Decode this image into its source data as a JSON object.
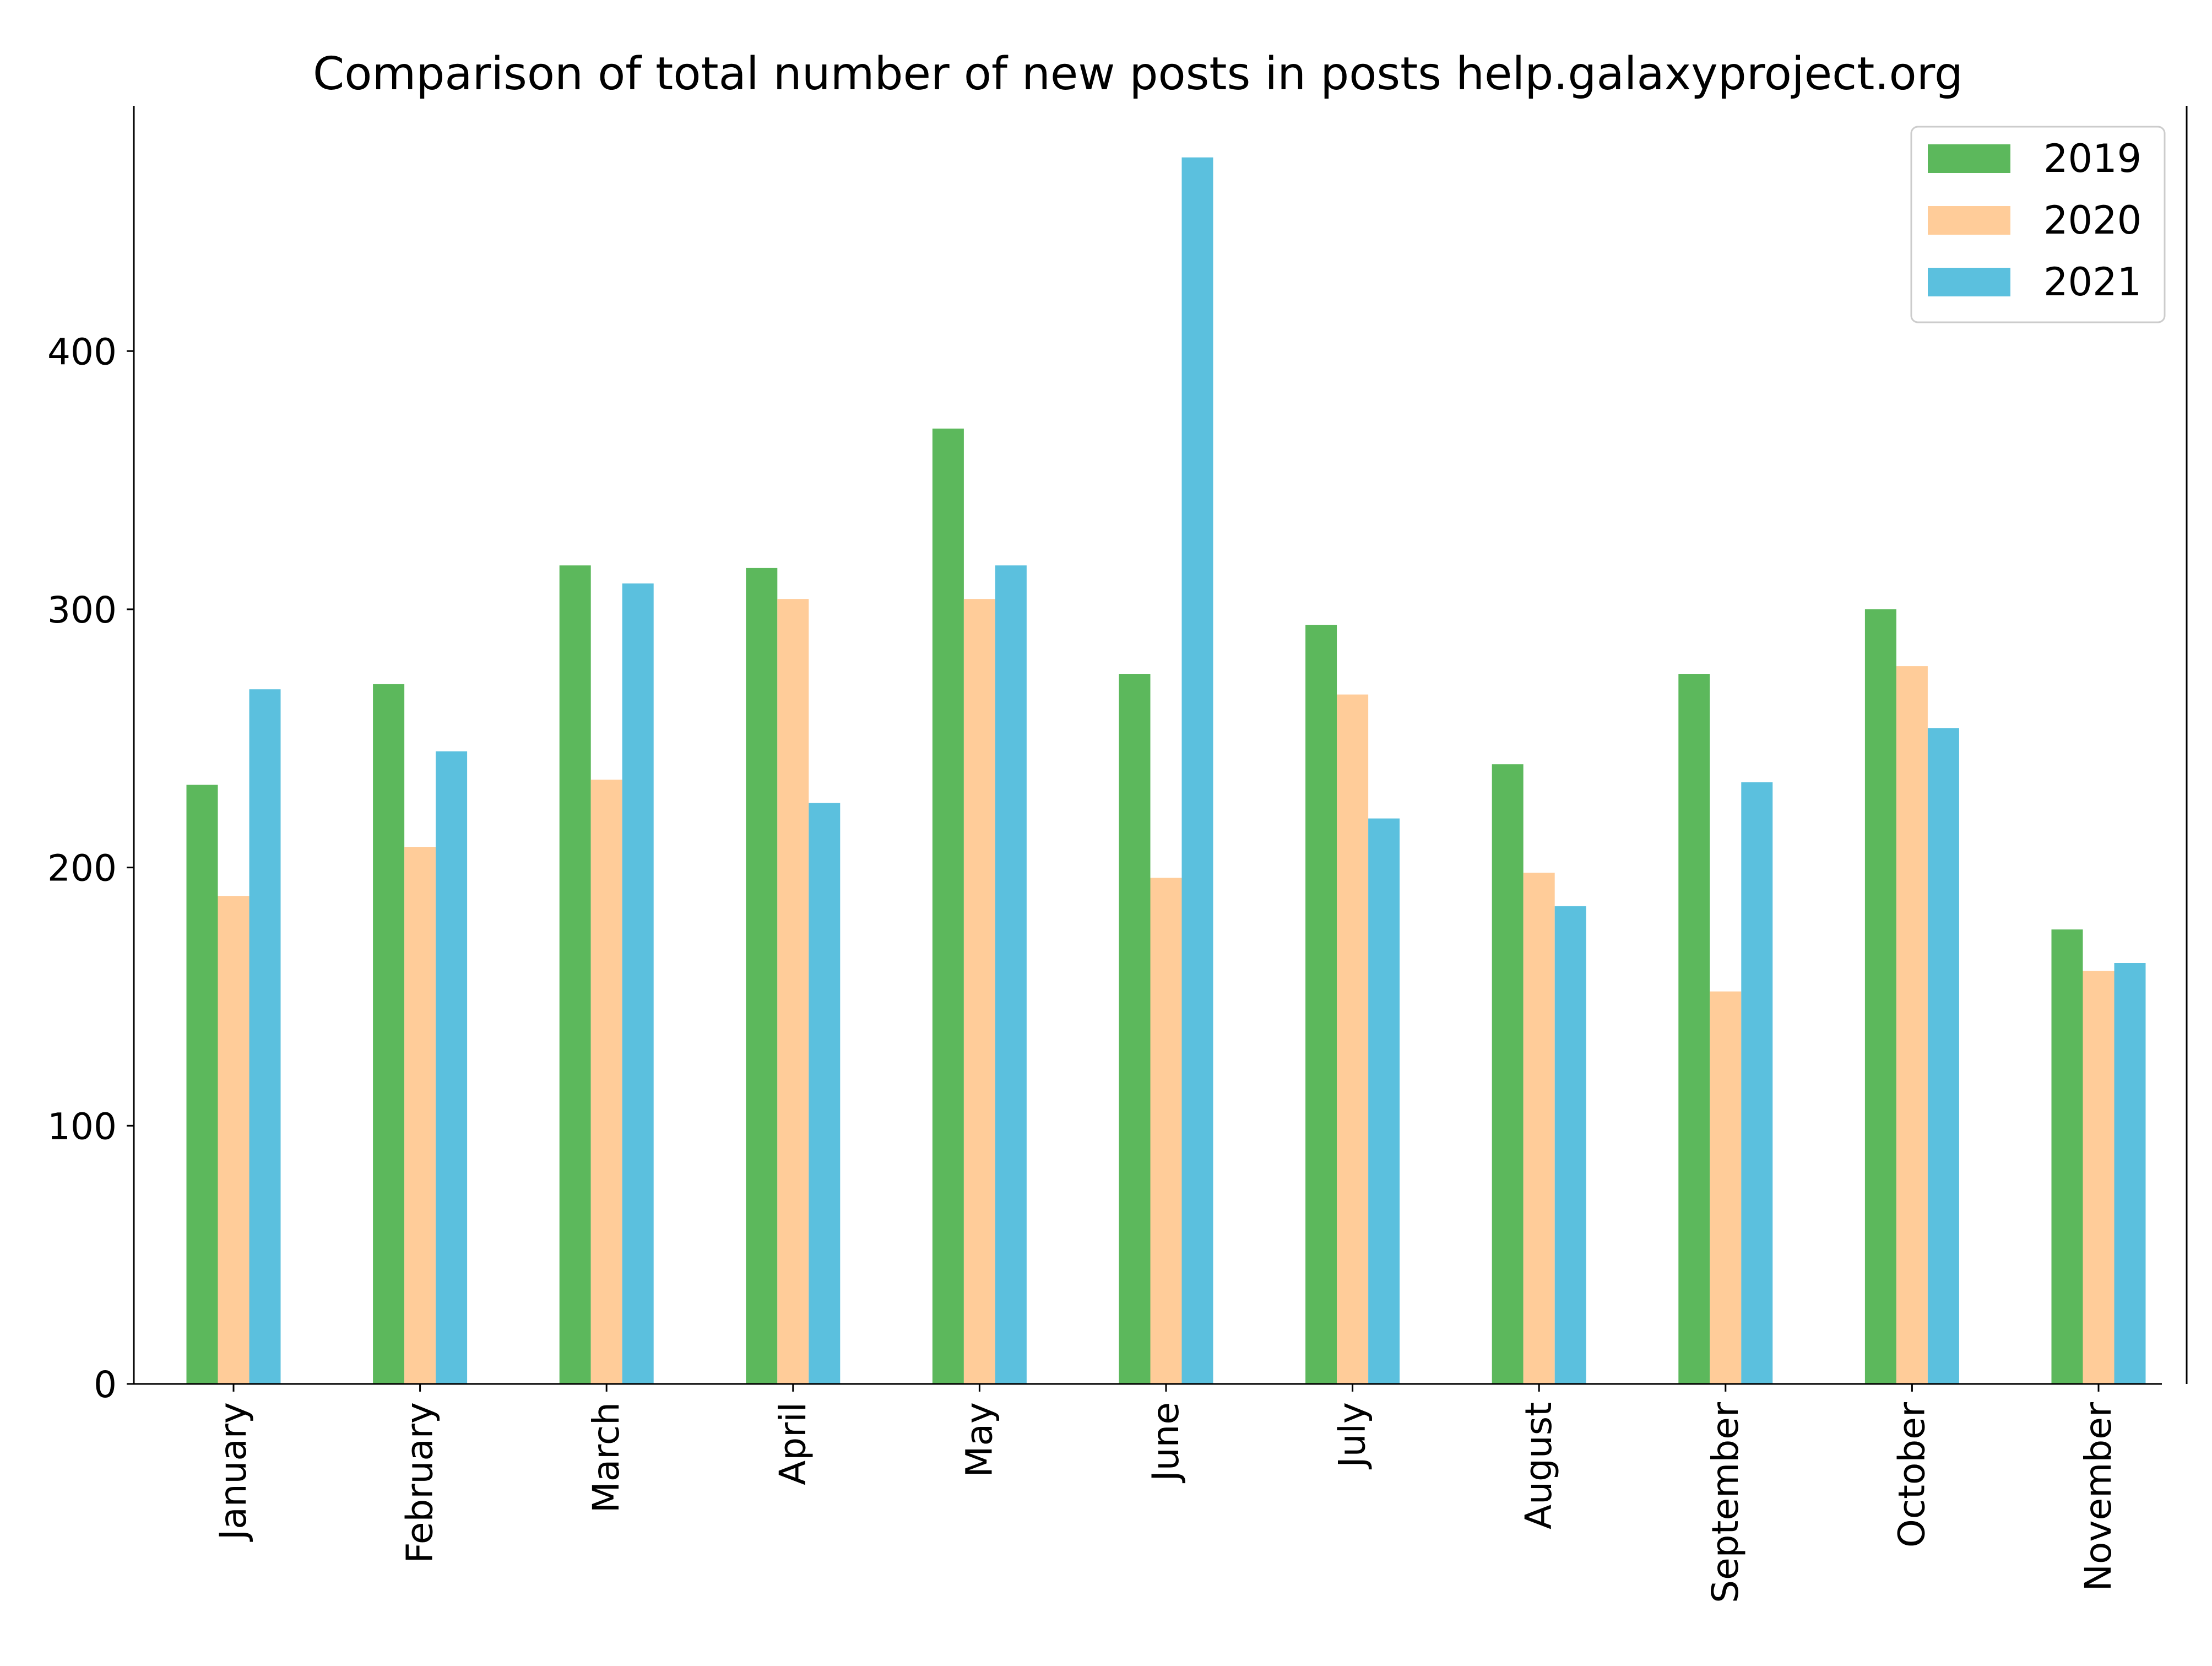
{
  "chart_data": {
    "type": "bar",
    "title": "Comparison of total number of new posts in posts help.galaxyproject.org",
    "xlabel": "",
    "ylabel": "",
    "categories": [
      "January",
      "February",
      "March",
      "April",
      "May",
      "June",
      "July",
      "August",
      "September",
      "October",
      "November"
    ],
    "series": [
      {
        "name": "2019",
        "color": "#5cb85c",
        "values": [
          232,
          271,
          317,
          316,
          370,
          275,
          294,
          240,
          275,
          300,
          176
        ]
      },
      {
        "name": "2020",
        "color": "#ffcc99",
        "values": [
          189,
          208,
          234,
          304,
          304,
          196,
          267,
          198,
          152,
          278,
          160
        ]
      },
      {
        "name": "2021",
        "color": "#5bc0de",
        "values": [
          269,
          245,
          310,
          225,
          317,
          475,
          219,
          185,
          233,
          254,
          163
        ]
      }
    ],
    "ylim": [
      0,
      495
    ],
    "yticks": [
      0,
      100,
      200,
      300,
      400
    ],
    "grid": false,
    "legend_position": "top-right"
  }
}
